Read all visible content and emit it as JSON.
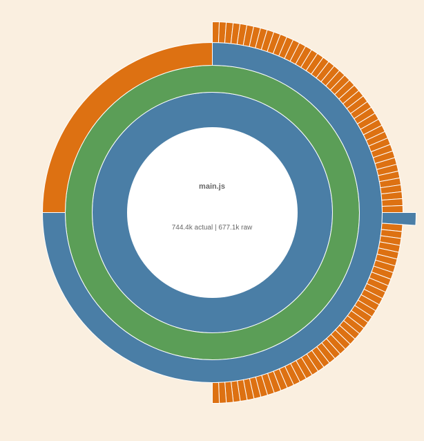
{
  "center": {
    "title": "main.js",
    "stats": "744.4k actual | 677.1k raw"
  },
  "colors": {
    "background": "#faefe0",
    "blue": "#4a7ea6",
    "green": "#5b9e57",
    "orange": "#dd7112",
    "separator": "#ffffff"
  },
  "rings": [
    {
      "name": "ring-1",
      "segments": [
        {
          "fraction": 1.0,
          "color": "blue"
        }
      ]
    },
    {
      "name": "ring-2",
      "segments": [
        {
          "fraction": 1.0,
          "color": "green"
        }
      ]
    },
    {
      "name": "ring-3",
      "segments": [
        {
          "fraction": 0.75,
          "color": "blue"
        },
        {
          "fraction": 0.25,
          "color": "orange"
        }
      ]
    },
    {
      "name": "ring-4",
      "groups": [
        {
          "fraction": 0.25,
          "count": 43,
          "color": "orange"
        },
        {
          "fraction": 0.01,
          "count": 1,
          "color": "blue",
          "extends_outward": true
        },
        {
          "fraction": 0.24,
          "count": 41,
          "color": "orange"
        }
      ]
    }
  ]
}
